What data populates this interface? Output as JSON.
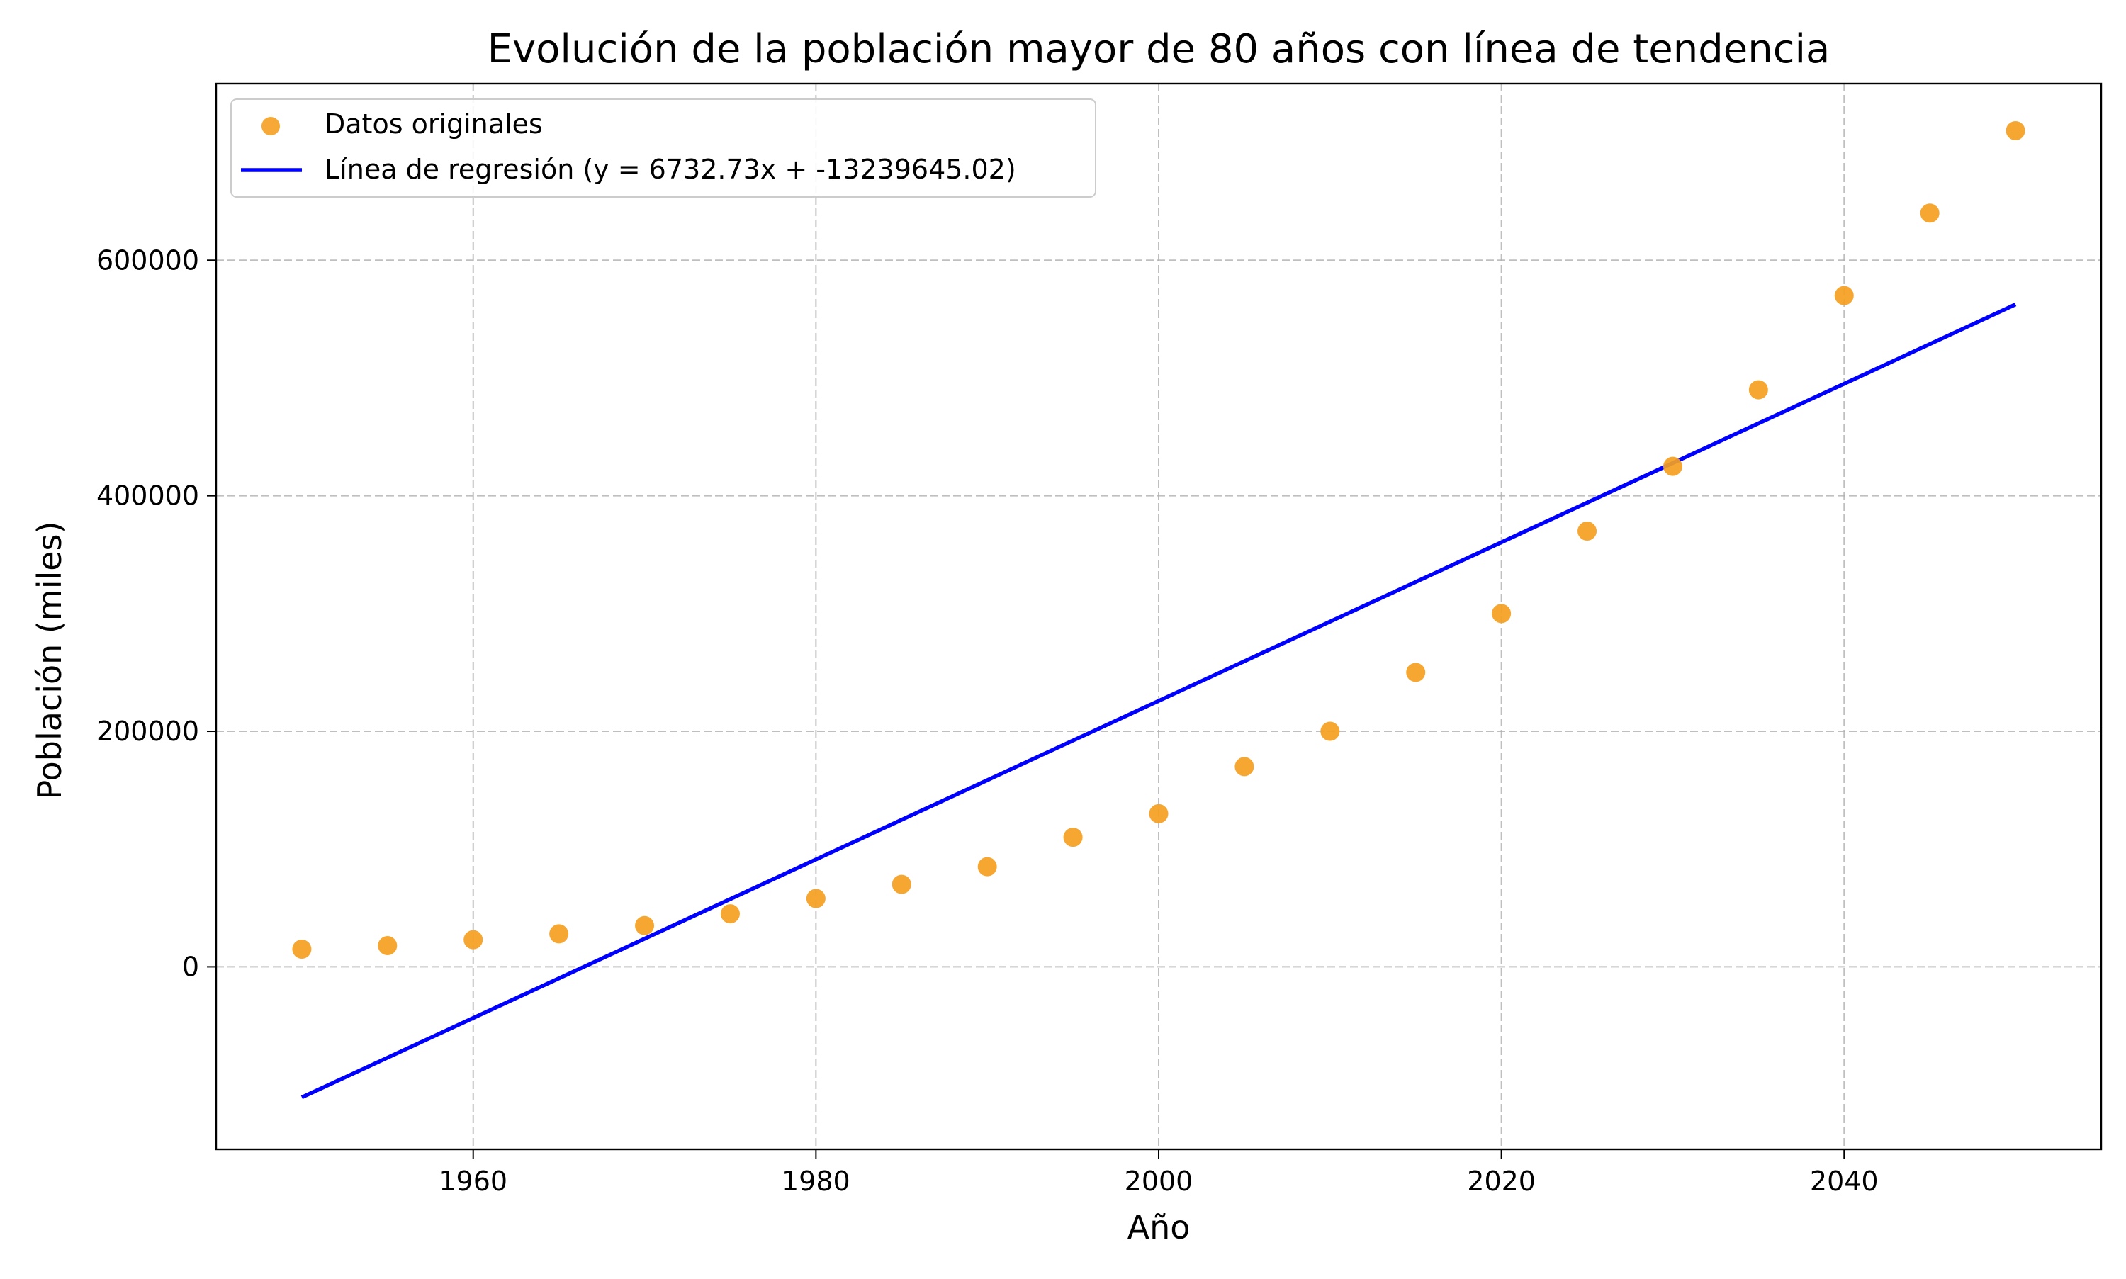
{
  "chart_data": {
    "type": "scatter",
    "title": "Evolución de la población mayor de 80 años con línea de tendencia",
    "xlabel": "Año",
    "ylabel": "Población (miles)",
    "xlim": [
      1945,
      2055
    ],
    "ylim": [
      -155000,
      750000
    ],
    "x_ticks": [
      1960,
      1980,
      2000,
      2020,
      2040
    ],
    "y_ticks": [
      0,
      200000,
      400000,
      600000
    ],
    "grid": true,
    "legend_position": "top-left",
    "series": [
      {
        "name": "Datos originales",
        "kind": "scatter",
        "color": "#f5a021",
        "x": [
          1950,
          1955,
          1960,
          1965,
          1970,
          1975,
          1980,
          1985,
          1990,
          1995,
          2000,
          2005,
          2010,
          2015,
          2020,
          2025,
          2030,
          2035,
          2040,
          2045,
          2050
        ],
        "y": [
          15000,
          18000,
          23000,
          28000,
          35000,
          45000,
          58000,
          70000,
          85000,
          110000,
          130000,
          170000,
          200000,
          250000,
          300000,
          370000,
          425000,
          490000,
          570000,
          640000,
          710000
        ]
      },
      {
        "name": "Línea de regresión (y = 6732.73x + -13239645.02)",
        "kind": "line",
        "color": "#0000ff",
        "slope": 6732.73,
        "intercept": -13239645.02,
        "x": [
          1950,
          2050
        ]
      }
    ]
  }
}
